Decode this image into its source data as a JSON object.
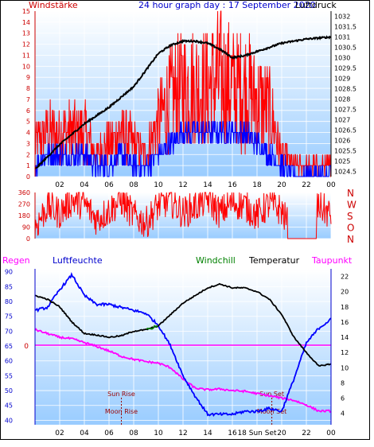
{
  "header": {
    "left": "Windstärke",
    "center": "24 hour graph day : 17 September 2020",
    "right": "Luftdruck"
  },
  "colors": {
    "wind_max": "#ff0000",
    "wind_avg": "#0000ff",
    "pressure": "#000000",
    "direction": "#ff0000",
    "humidity": "#0000ff",
    "temperature": "#000000",
    "dewpoint": "#ff00ff",
    "windchill": "#008000",
    "rain": "#ff0000",
    "grid": "#ffffff",
    "bg_top": "#ffffff",
    "bg_bottom": "#99ccff",
    "axis_left": "#cc0000",
    "axis_right_bottom": "#0000cc"
  },
  "chart_data": [
    {
      "type": "line",
      "title": "24 hour graph day : 17 September 2020",
      "ylabel": "Windstärke",
      "y2label": "Luftdruck",
      "x_ticks": [
        "02",
        "04",
        "06",
        "08",
        "10",
        "12",
        "14",
        "16",
        "18",
        "20",
        "22",
        "00"
      ],
      "ylim": [
        0,
        15
      ],
      "y_ticks": [
        0,
        1,
        2,
        3,
        4,
        5,
        6,
        7,
        8,
        9,
        10,
        11,
        12,
        13,
        14,
        15
      ],
      "y2lim": [
        1024.25,
        1032.25
      ],
      "y2_ticks": [
        1024.5,
        1025,
        1025.5,
        1026,
        1026.5,
        1027,
        1027.5,
        1028,
        1028.5,
        1029,
        1029.5,
        1030,
        1030.5,
        1031,
        1031.5,
        1032
      ],
      "x_hours": [
        0,
        1,
        2,
        3,
        4,
        5,
        6,
        7,
        8,
        9,
        10,
        11,
        12,
        13,
        14,
        15,
        16,
        17,
        18,
        19,
        20,
        21,
        22,
        23,
        24
      ],
      "series": [
        {
          "name": "Luftdruck",
          "values": [
            1024.6,
            1025.2,
            1025.8,
            1026.3,
            1026.8,
            1027.2,
            1027.6,
            1028.1,
            1028.6,
            1029.4,
            1030.2,
            1030.6,
            1030.8,
            1030.8,
            1030.7,
            1030.4,
            1030.0,
            1030.1,
            1030.3,
            1030.5,
            1030.7,
            1030.8,
            1030.9,
            1030.95,
            1031.0
          ]
        },
        {
          "name": "Wind max",
          "values": [
            3,
            4,
            4,
            4,
            4,
            2,
            3,
            4,
            3,
            2,
            5,
            7,
            8,
            8,
            8,
            9,
            8,
            8,
            7,
            6,
            2,
            1,
            1,
            1,
            1
          ]
        },
        {
          "name": "Wind avg",
          "values": [
            1,
            2,
            2,
            2,
            2,
            1,
            1,
            2,
            1,
            1,
            2,
            3,
            4,
            4,
            4,
            4,
            4,
            4,
            3,
            2,
            1,
            0,
            0,
            0,
            0
          ]
        }
      ]
    },
    {
      "type": "line",
      "ylabel": "",
      "y_ticks": [
        0,
        90,
        180,
        270,
        360
      ],
      "y2_ticks": [
        "N",
        "W",
        "S",
        "O",
        "N"
      ],
      "ylim": [
        0,
        360
      ],
      "series": [
        {
          "name": "Windrichtung",
          "values": [
            90,
            250,
            200,
            300,
            270,
            150,
            220,
            300,
            180,
            120,
            260,
            300,
            200,
            250,
            310,
            200,
            280,
            260,
            180,
            270,
            220,
            0,
            0,
            260,
            180
          ]
        }
      ]
    },
    {
      "type": "line",
      "legend": [
        "Regen",
        "Luftfeuchte",
        "Windchill",
        "Temperatur",
        "Taupunkt"
      ],
      "x_ticks": [
        "02",
        "04",
        "06",
        "08",
        "10",
        "12",
        "14",
        "16",
        "18 Sun Set",
        "20",
        "22",
        "00"
      ],
      "ylim": [
        38.5,
        91
      ],
      "y_ticks": [
        40,
        45,
        50,
        55,
        60,
        65,
        70,
        75,
        80,
        85,
        90
      ],
      "y2lim": [
        2.5,
        23
      ],
      "y2_ticks": [
        4,
        6,
        8,
        10,
        12,
        14,
        16,
        18,
        20,
        22
      ],
      "rain_value": 0,
      "annotations": [
        {
          "text": "Sun Rise",
          "hour": 7.0,
          "row": "upper"
        },
        {
          "text": "Moon Rise",
          "hour": 7.0,
          "row": "lower"
        },
        {
          "text": "Sun Set",
          "hour": 19.2,
          "row": "upper"
        },
        {
          "text": "Moon Set",
          "hour": 19.2,
          "row": "lower"
        }
      ],
      "series": [
        {
          "name": "Luftfeuchte",
          "values": [
            77,
            78,
            84,
            89,
            82,
            79,
            79,
            78,
            77,
            76,
            72,
            65,
            55,
            48,
            42,
            42,
            42,
            43,
            43,
            44,
            43,
            54,
            66,
            71,
            74
          ]
        },
        {
          "name": "Temperatur",
          "values": [
            19.5,
            19,
            18,
            16,
            14.5,
            14.3,
            14,
            14.2,
            14.8,
            15.0,
            15.5,
            17,
            18.5,
            19.5,
            20.5,
            21,
            20.5,
            20.5,
            20,
            19,
            17,
            14,
            12,
            10.2,
            10.5
          ]
        },
        {
          "name": "Taupunkt",
          "values": [
            15,
            14.5,
            14,
            13.8,
            13.3,
            12.8,
            12.2,
            11.5,
            11.1,
            10.8,
            10.6,
            10.0,
            8.5,
            7.3,
            7.1,
            7.2,
            7.0,
            6.9,
            6.6,
            6.3,
            6.0,
            5.7,
            5.1,
            4.3,
            4.3
          ]
        },
        {
          "name": "Windchill",
          "values": [
            null,
            null,
            null,
            null,
            null,
            null,
            null,
            null,
            null,
            15.0,
            15.5,
            null,
            null,
            null,
            null,
            null,
            null,
            null,
            null,
            null,
            null,
            null,
            null,
            null,
            null
          ]
        }
      ]
    }
  ],
  "panel3": {
    "label_regen": "Regen",
    "label_luftfeuchte": "Luftfeuchte",
    "label_windchill": "Windchill",
    "label_temperatur": "Temperatur",
    "label_taupunkt": "Taupunkt",
    "rain_axis_label": "0"
  }
}
